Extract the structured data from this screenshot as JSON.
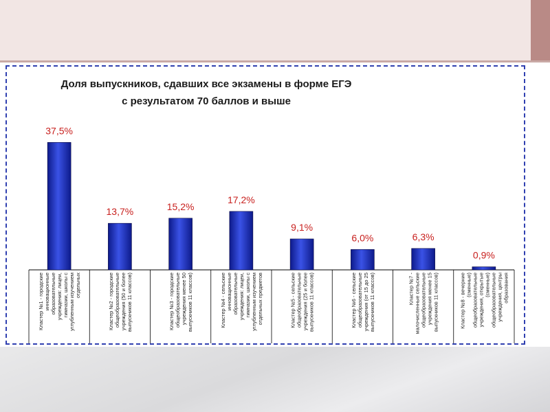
{
  "chart_data": {
    "type": "bar",
    "title_lines": [
      "Доля выпускников, сдавших все экзамены в форме ЕГЭ",
      "с результатом 70 баллов и выше"
    ],
    "categories": [
      "Кластер №1 - городские инновационные образовательные учреждения: лицеи, гимназии, школы с углубленным изучением отдельных",
      "Кластер №2 - городские общеобразовательные учреждения (50 и более выпускников 11 классов)",
      "Кластер №3 - городские общеобразовательные учреждения менее 50 выпускников 11 классов)",
      "Кластер №4 - сельские инновационные образовательные учреждения: лицеи, гимназии, школы с углубленным изучением отдельных предметов",
      "Кластер №5 - сельские общеобразовательные учреждения (25 и более выпускников 11 классов)",
      "Кластер №6 - сельские общеобразовательные учреждения (от 15 до 25 выпускников 11 классов)",
      "Кластер №7 - малочисленные сельские общеобразовательные учреждения менее 15 выпускников 11 классов)",
      "Кластер №8 - вечерние (сменные) общеобразовательные учреждения, открытые (сменные) общеобразовательные учреждения, центры образования"
    ],
    "values": [
      37.5,
      13.7,
      15.2,
      17.2,
      9.1,
      6.0,
      6.3,
      0.9
    ],
    "value_labels": [
      "37,5%",
      "13,7%",
      "15,2%",
      "17,2%",
      "9,1%",
      "6,0%",
      "6,3%",
      "0,9%"
    ],
    "ylim": [
      0,
      40
    ],
    "grid": false,
    "bar_color": "#1f2fb8",
    "label_color": "#c8201e"
  }
}
